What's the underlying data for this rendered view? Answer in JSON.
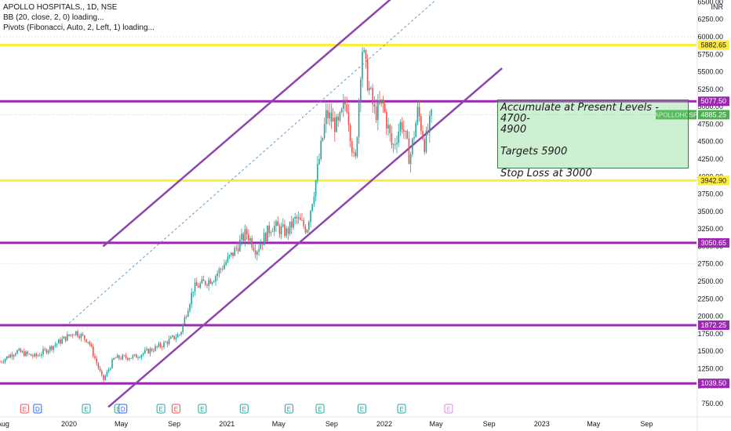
{
  "legend": {
    "title": "APOLLO HOSPITALS., 1D, NSE",
    "indicator_bb": "BB (20, close, 2, 0) loading...",
    "indicator_pivots": "Pivots (Fibonacci, Auto, 2, Left, 1) loading..."
  },
  "annotation": {
    "text": "Accumulate at Present Levels - 4700-\n4900\n\nTargets 5900\n\nStop Loss at 3000",
    "background": "#72d37e"
  },
  "colors": {
    "up": "#26a69a",
    "down": "#ef5350",
    "yellow_line": "#ffeb3b",
    "purple_line": "#9c27b0",
    "channel_line": "#8e44ad",
    "midline": "#5b9bd5",
    "price_label": "#4caf50"
  },
  "chart_data": {
    "type": "candlestick",
    "title": "APOLLO HOSPITALS., 1D, NSE",
    "currency": "INR",
    "ylim": [
      650,
      6700
    ],
    "y_ticks": [
      "750.00",
      "1000.00",
      "1250.00",
      "1500.00",
      "1750.00",
      "2000.00",
      "2250.00",
      "2500.00",
      "2750.00",
      "3000.00",
      "3250.00",
      "3500.00",
      "3750.00",
      "4000.00",
      "4250.00",
      "4500.00",
      "4750.00",
      "5000.00",
      "5250.00",
      "5500.00",
      "5750.00",
      "6000.00",
      "6250.00",
      "6500.00"
    ],
    "y_tick_values": [
      750,
      1000,
      1250,
      1500,
      1750,
      2000,
      2250,
      2500,
      2750,
      3000,
      3250,
      3500,
      3750,
      4000,
      4250,
      4500,
      4750,
      5000,
      5250,
      5500,
      5750,
      6000,
      6250,
      6500
    ],
    "x_ticks": [
      "Aug",
      "2020",
      "May",
      "Sep",
      "2021",
      "May",
      "Sep",
      "2022",
      "May",
      "Sep",
      "2023",
      "May",
      "Sep"
    ],
    "x_tick_dates": [
      "2019-08-01",
      "2020-01-01",
      "2020-05-01",
      "2020-09-01",
      "2021-01-01",
      "2021-05-01",
      "2021-09-01",
      "2022-01-01",
      "2022-05-01",
      "2022-09-01",
      "2023-01-01",
      "2023-05-01",
      "2023-09-01"
    ],
    "horizontal_levels": [
      {
        "value": 5882.65,
        "label": "5882.65",
        "color": "yellow"
      },
      {
        "value": 5077.5,
        "label": "5077.50",
        "color": "purple"
      },
      {
        "value": 3942.9,
        "label": "3942.90",
        "color": "yellow"
      },
      {
        "value": 3050.65,
        "label": "3050.65",
        "color": "purple"
      },
      {
        "value": 1872.25,
        "label": "1872.25",
        "color": "purple"
      },
      {
        "value": 1039.5,
        "label": "1039.50",
        "color": "purple"
      }
    ],
    "last_price": {
      "symbol": "APOLLOHOSP",
      "value": 4885.25,
      "label": "4885.25"
    },
    "price_path": [
      [
        "2019-07-25",
        1350
      ],
      [
        "2019-09-01",
        1500
      ],
      [
        "2019-10-15",
        1420
      ],
      [
        "2019-12-01",
        1600
      ],
      [
        "2020-01-15",
        1780
      ],
      [
        "2020-02-15",
        1650
      ],
      [
        "2020-03-20",
        1080
      ],
      [
        "2020-04-15",
        1400
      ],
      [
        "2020-06-01",
        1420
      ],
      [
        "2020-08-01",
        1580
      ],
      [
        "2020-09-15",
        1750
      ],
      [
        "2020-10-15",
        2400
      ],
      [
        "2020-12-01",
        2550
      ],
      [
        "2021-01-15",
        2900
      ],
      [
        "2021-02-15",
        3200
      ],
      [
        "2021-03-10",
        2950
      ],
      [
        "2021-04-15",
        3300
      ],
      [
        "2021-05-20",
        3200
      ],
      [
        "2021-06-10",
        3400
      ],
      [
        "2021-07-05",
        3250
      ],
      [
        "2021-07-25",
        3900
      ],
      [
        "2021-08-20",
        4900
      ],
      [
        "2021-09-15",
        4700
      ],
      [
        "2021-10-05",
        5100
      ],
      [
        "2021-10-25",
        4100
      ],
      [
        "2021-11-10",
        5880
      ],
      [
        "2021-11-25",
        5300
      ],
      [
        "2021-12-10",
        4900
      ],
      [
        "2021-12-28",
        5050
      ],
      [
        "2022-01-20",
        4400
      ],
      [
        "2022-02-10",
        4800
      ],
      [
        "2022-03-01",
        4250
      ],
      [
        "2022-03-20",
        4950
      ],
      [
        "2022-04-05",
        4450
      ],
      [
        "2022-04-22",
        4885
      ]
    ],
    "channel": {
      "upper": [
        [
          "2020-03-20",
          3000
        ],
        [
          "2022-02-15",
          6700
        ]
      ],
      "lower": [
        [
          "2020-04-01",
          700
        ],
        [
          "2022-10-01",
          5550
        ]
      ],
      "middle": [
        [
          "2020-01-01",
          1900
        ],
        [
          "2022-06-01",
          6700
        ]
      ]
    },
    "events": [
      {
        "date": "2019-09-20",
        "label": "E",
        "color": "#ef5350"
      },
      {
        "date": "2019-10-20",
        "label": "D",
        "color": "#2962ff"
      },
      {
        "date": "2020-02-10",
        "label": "E",
        "color": "#26a69a"
      },
      {
        "date": "2020-04-25",
        "label": "E",
        "color": "#26a69a"
      },
      {
        "date": "2020-05-05",
        "label": "D",
        "color": "#2962ff"
      },
      {
        "date": "2020-08-01",
        "label": "E",
        "color": "#26a69a"
      },
      {
        "date": "2020-09-05",
        "label": "E",
        "color": "#ef5350"
      },
      {
        "date": "2020-11-05",
        "label": "E",
        "color": "#26a69a"
      },
      {
        "date": "2021-02-10",
        "label": "E",
        "color": "#26a69a"
      },
      {
        "date": "2021-05-25",
        "label": "E",
        "color": "#26a69a"
      },
      {
        "date": "2021-08-05",
        "label": "E",
        "color": "#26a69a"
      },
      {
        "date": "2021-11-10",
        "label": "E",
        "color": "#26a69a"
      },
      {
        "date": "2022-02-10",
        "label": "E",
        "color": "#26a69a"
      },
      {
        "date": "2022-05-30",
        "label": "E",
        "color": "#ce93d8"
      }
    ]
  }
}
